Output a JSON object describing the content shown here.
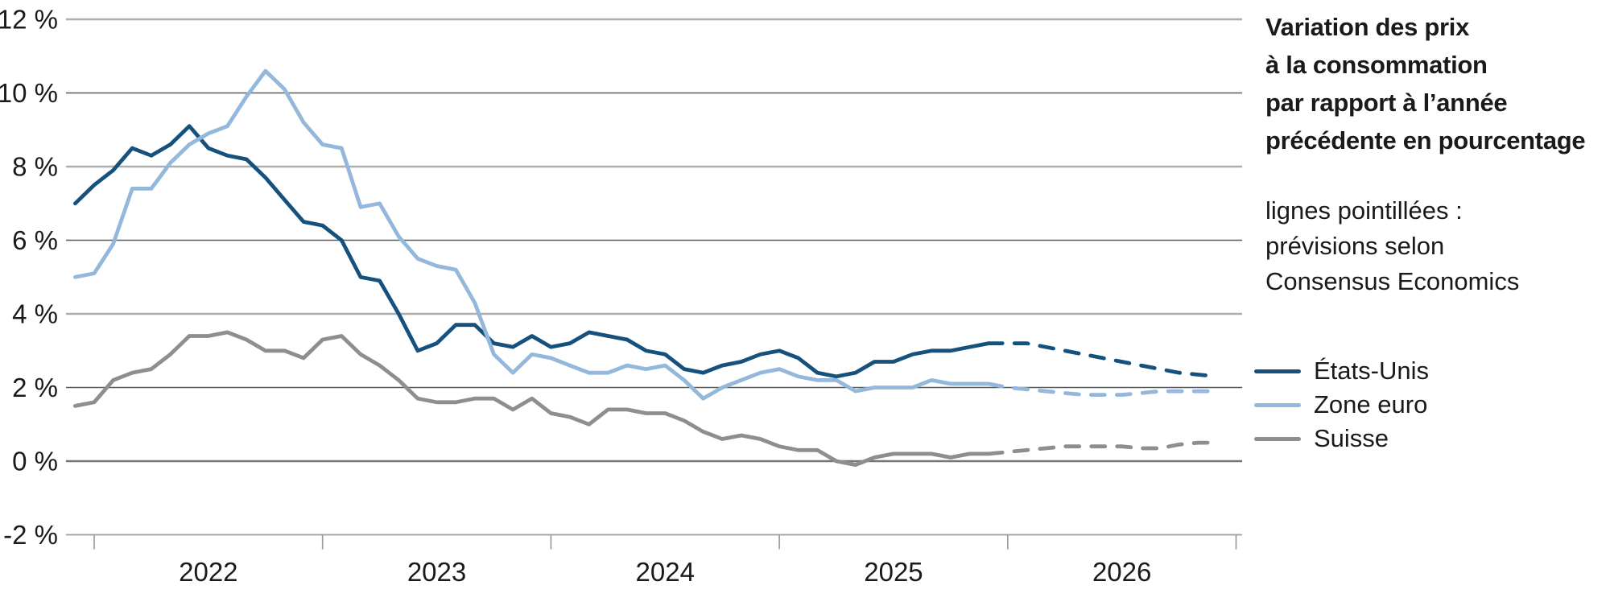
{
  "chart_data": {
    "type": "line",
    "title": "Variation des prix à la consommation par rapport à l’année précédente en pourcentage",
    "note": "lignes pointillées : prévisions selon Consensus Economics",
    "frequency": "monthly",
    "x_start": "2021-12",
    "actual_until": "2025-12",
    "forecast_until": "2026-12",
    "ylim": [
      -2,
      12
    ],
    "legend_position": "right",
    "grid": "horizontal",
    "x_axis": {
      "years": [
        "2022",
        "2023",
        "2024",
        "2025",
        "2026"
      ]
    },
    "y_axis": {
      "ticks": [
        {
          "label": "12 %",
          "value": 12
        },
        {
          "label": "10 %",
          "value": 10
        },
        {
          "label": "8 %",
          "value": 8
        },
        {
          "label": "6 %",
          "value": 6
        },
        {
          "label": "4 %",
          "value": 4
        },
        {
          "label": "2 %",
          "value": 2
        },
        {
          "label": "0 %",
          "value": 0
        },
        {
          "label": "-2 %",
          "value": -2
        }
      ],
      "gridlines": [
        {
          "value": 12,
          "style": "light"
        },
        {
          "value": 10,
          "style": "thin"
        },
        {
          "value": 8,
          "style": "light"
        },
        {
          "value": 6,
          "style": "thin"
        },
        {
          "value": 4,
          "style": "light"
        },
        {
          "value": 2,
          "style": "thin"
        },
        {
          "value": 0,
          "style": "zero"
        }
      ],
      "baseline_value": -2
    },
    "colors": {
      "etats_unis": "#16517e",
      "zone_euro": "#93b8db",
      "suisse": "#8e8e8e",
      "grid_light": "#aeaeae",
      "grid_thin": "#595a5e",
      "grid_zero": "#757577",
      "axis": "#9c9c9c",
      "text": "#1a1a1a"
    },
    "series": [
      {
        "id": "etats-unis",
        "name": "États-Unis",
        "color_key": "etats_unis",
        "actual": [
          7.0,
          7.5,
          7.9,
          8.5,
          8.3,
          8.6,
          9.1,
          8.5,
          8.3,
          8.2,
          7.7,
          7.1,
          6.5,
          6.4,
          6.0,
          5.0,
          4.9,
          4.0,
          3.0,
          3.2,
          3.7,
          3.7,
          3.2,
          3.1,
          3.4,
          3.1,
          3.2,
          3.5,
          3.4,
          3.3,
          3.0,
          2.9,
          2.5,
          2.4,
          2.6,
          2.7,
          2.9,
          3.0,
          2.8,
          2.4,
          2.3,
          2.4,
          2.7,
          2.7,
          2.9,
          3.0,
          3.0,
          3.1,
          3.2
        ],
        "forecast": [
          3.2,
          3.2,
          3.2,
          3.1,
          3.0,
          2.9,
          2.8,
          2.7,
          2.6,
          2.5,
          2.4,
          2.35,
          2.3
        ]
      },
      {
        "id": "zone-euro",
        "name": "Zone euro",
        "color_key": "zone_euro",
        "actual": [
          5.0,
          5.1,
          5.9,
          7.4,
          7.4,
          8.1,
          8.6,
          8.9,
          9.1,
          9.9,
          10.6,
          10.1,
          9.2,
          8.6,
          8.5,
          6.9,
          7.0,
          6.1,
          5.5,
          5.3,
          5.2,
          4.3,
          2.9,
          2.4,
          2.9,
          2.8,
          2.6,
          2.4,
          2.4,
          2.6,
          2.5,
          2.6,
          2.2,
          1.7,
          2.0,
          2.2,
          2.4,
          2.5,
          2.3,
          2.2,
          2.2,
          1.9,
          2.0,
          2.0,
          2.0,
          2.2,
          2.1,
          2.1,
          2.1
        ],
        "forecast": [
          2.1,
          2.0,
          1.95,
          1.9,
          1.85,
          1.8,
          1.8,
          1.8,
          1.85,
          1.9,
          1.9,
          1.9,
          1.9
        ]
      },
      {
        "id": "suisse",
        "name": "Suisse",
        "color_key": "suisse",
        "actual": [
          1.5,
          1.6,
          2.2,
          2.4,
          2.5,
          2.9,
          3.4,
          3.4,
          3.5,
          3.3,
          3.0,
          3.0,
          2.8,
          3.3,
          3.4,
          2.9,
          2.6,
          2.2,
          1.7,
          1.6,
          1.6,
          1.7,
          1.7,
          1.4,
          1.7,
          1.3,
          1.2,
          1.0,
          1.4,
          1.4,
          1.3,
          1.3,
          1.1,
          0.8,
          0.6,
          0.7,
          0.6,
          0.4,
          0.3,
          0.3,
          0.0,
          -0.1,
          0.1,
          0.2,
          0.2,
          0.2,
          0.1,
          0.2,
          0.2
        ],
        "forecast": [
          0.2,
          0.25,
          0.3,
          0.35,
          0.4,
          0.4,
          0.4,
          0.4,
          0.35,
          0.35,
          0.45,
          0.5,
          0.5
        ]
      }
    ]
  },
  "annotation": {
    "title_lines": [
      "Variation des prix",
      "à la consommation",
      "par rapport à l’année",
      "précédente en pourcentage"
    ],
    "subtitle_lines": [
      "lignes pointillées :",
      "prévisions selon",
      "Consensus Economics"
    ]
  },
  "legend": {
    "items": [
      {
        "label": "États-Unis"
      },
      {
        "label": "Zone euro"
      },
      {
        "label": "Suisse"
      }
    ]
  }
}
